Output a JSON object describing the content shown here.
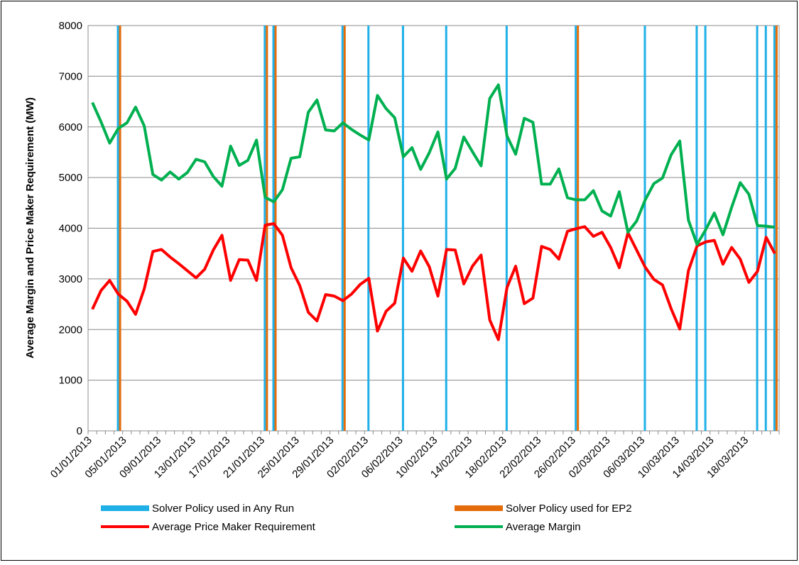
{
  "chart_data": {
    "type": "combo",
    "y_label": "Average Margin and Price Maker Requirement  (MW)",
    "categories": [
      "01/01/2013",
      null,
      null,
      null,
      "05/01/2013",
      null,
      null,
      null,
      "09/01/2013",
      null,
      null,
      null,
      "13/01/2013",
      null,
      null,
      null,
      "17/01/2013",
      null,
      null,
      null,
      "21/01/2013",
      null,
      null,
      null,
      "25/01/2013",
      null,
      null,
      null,
      "29/01/2013",
      null,
      null,
      null,
      "02/02/2013",
      null,
      null,
      null,
      "06/02/2013",
      null,
      null,
      null,
      "10/02/2013",
      null,
      null,
      null,
      "14/02/2013",
      null,
      null,
      null,
      "18/02/2013",
      null,
      null,
      null,
      "22/02/2013",
      null,
      null,
      null,
      "26/02/2013",
      null,
      null,
      null,
      "02/03/2013",
      null,
      null,
      null,
      "06/03/2013",
      null,
      null,
      null,
      "10/03/2013",
      null,
      null,
      null,
      "14/03/2013",
      null,
      null,
      null,
      "18/03/2013",
      null,
      null,
      null
    ],
    "ylim": [
      0,
      8000
    ],
    "yticks": [
      0,
      1000,
      2000,
      3000,
      4000,
      5000,
      6000,
      7000,
      8000
    ],
    "grid": true,
    "series": [
      {
        "name": "Solver Policy used in Any Run",
        "type": "bar",
        "color": "#1fb0e8",
        "values": [
          null,
          null,
          null,
          8000,
          null,
          null,
          null,
          null,
          null,
          null,
          null,
          null,
          null,
          null,
          null,
          null,
          null,
          null,
          null,
          null,
          8000,
          8000,
          null,
          null,
          null,
          null,
          null,
          null,
          null,
          8000,
          null,
          null,
          8000,
          null,
          null,
          null,
          8000,
          null,
          null,
          null,
          null,
          8000,
          null,
          null,
          null,
          null,
          null,
          null,
          8000,
          null,
          null,
          null,
          null,
          null,
          null,
          null,
          8000,
          null,
          null,
          null,
          null,
          null,
          null,
          null,
          8000,
          null,
          null,
          null,
          null,
          null,
          8000,
          8000,
          null,
          null,
          null,
          null,
          null,
          8000,
          8000,
          8000
        ]
      },
      {
        "name": "Solver Policy used for EP2",
        "type": "bar",
        "color": "#e46c0a",
        "values": [
          null,
          null,
          null,
          8000,
          null,
          null,
          null,
          null,
          null,
          null,
          null,
          null,
          null,
          null,
          null,
          null,
          null,
          null,
          null,
          null,
          8000,
          8000,
          null,
          null,
          null,
          null,
          null,
          null,
          null,
          8000,
          null,
          null,
          null,
          null,
          null,
          null,
          null,
          null,
          null,
          null,
          null,
          null,
          null,
          null,
          null,
          null,
          null,
          null,
          null,
          null,
          null,
          null,
          null,
          null,
          null,
          null,
          8000,
          null,
          null,
          null,
          null,
          null,
          null,
          null,
          null,
          null,
          null,
          null,
          null,
          null,
          null,
          null,
          null,
          null,
          null,
          null,
          null,
          null,
          null,
          8000
        ]
      },
      {
        "name": "Average Price Maker Requirement",
        "type": "line",
        "color": "#ff0000",
        "values": [
          2400,
          2770,
          2970,
          2700,
          2560,
          2300,
          2800,
          3540,
          3580,
          3430,
          3300,
          3160,
          3020,
          3190,
          3570,
          3860,
          2970,
          3380,
          3370,
          2970,
          4060,
          4090,
          3860,
          3220,
          2870,
          2340,
          2170,
          2690,
          2660,
          2570,
          2700,
          2890,
          3010,
          1970,
          2360,
          2520,
          3410,
          3150,
          3550,
          3240,
          2660,
          3580,
          3570,
          2900,
          3250,
          3470,
          2190,
          1800,
          2830,
          3250,
          2510,
          2620,
          3640,
          3580,
          3390,
          3940,
          3990,
          4030,
          3840,
          3920,
          3620,
          3220,
          3910,
          3570,
          3230,
          2990,
          2880,
          2410,
          2010,
          3160,
          3650,
          3730,
          3760,
          3290,
          3620,
          3390,
          2930,
          3150,
          3820,
          3500
        ]
      },
      {
        "name": "Average Margin",
        "type": "line",
        "color": "#00b050",
        "values": [
          6480,
          6100,
          5680,
          5970,
          6080,
          6390,
          6020,
          5060,
          4950,
          5110,
          4970,
          5100,
          5360,
          5310,
          5020,
          4830,
          5620,
          5240,
          5340,
          5740,
          4610,
          4520,
          4760,
          5380,
          5410,
          6290,
          6530,
          5940,
          5920,
          6080,
          5950,
          5840,
          5740,
          6620,
          6360,
          6180,
          5410,
          5590,
          5160,
          5490,
          5900,
          4970,
          5180,
          5800,
          5510,
          5230,
          6560,
          6830,
          5820,
          5460,
          6170,
          6090,
          4870,
          4870,
          5170,
          4600,
          4560,
          4560,
          4740,
          4340,
          4240,
          4720,
          3920,
          4140,
          4560,
          4880,
          4990,
          5450,
          5720,
          4160,
          3680,
          3970,
          4300,
          3870,
          4410,
          4900,
          4670,
          4050,
          4040,
          4020
        ]
      }
    ]
  }
}
